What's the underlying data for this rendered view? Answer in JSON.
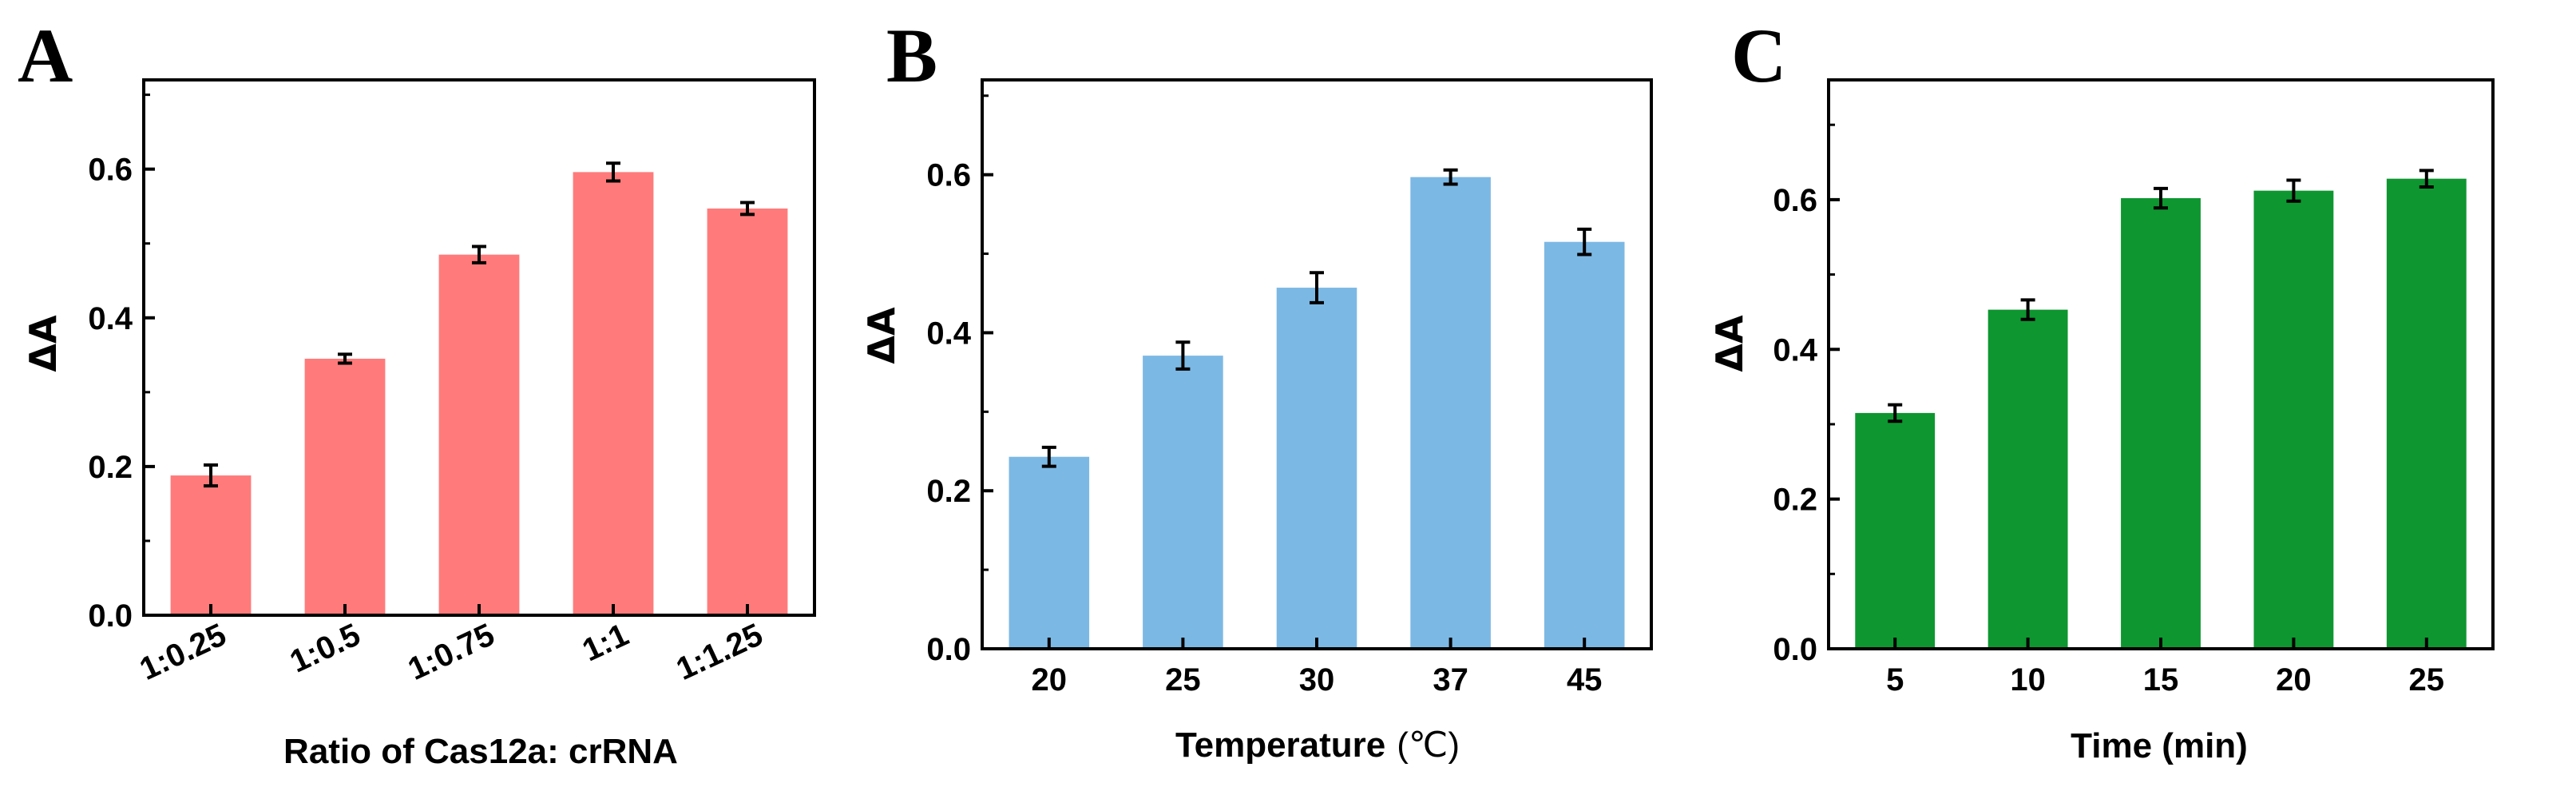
{
  "figure": {
    "panels": [
      "A",
      "B",
      "C"
    ]
  },
  "chart_data": [
    {
      "type": "bar",
      "panel": "A",
      "xlabel": "Ratio of Cas12a: crRNA",
      "ylabel": "ΔA",
      "categories": [
        "1:0.25",
        "1:0.5",
        "1:0.75",
        "1:1",
        "1:1.25"
      ],
      "values": [
        0.188,
        0.345,
        0.485,
        0.596,
        0.547
      ],
      "errors": [
        0.014,
        0.006,
        0.011,
        0.012,
        0.008
      ],
      "ylim": [
        0,
        0.72
      ],
      "yticks": [
        "0.0",
        "0.2",
        "0.4",
        "0.6"
      ],
      "ytick_values": [
        0,
        0.2,
        0.4,
        0.6
      ],
      "color": "#ff7b7b",
      "rotate_xticks": true
    },
    {
      "type": "bar",
      "panel": "B",
      "xlabel": "Temperature",
      "xlabel_unit": "(℃)",
      "ylabel": "ΔA",
      "categories": [
        "20",
        "25",
        "30",
        "37",
        "45"
      ],
      "values": [
        0.243,
        0.371,
        0.457,
        0.597,
        0.515
      ],
      "errors": [
        0.012,
        0.017,
        0.019,
        0.009,
        0.016
      ],
      "ylim": [
        0,
        0.72
      ],
      "yticks": [
        "0.0",
        "0.2",
        "0.4",
        "0.6"
      ],
      "ytick_values": [
        0,
        0.2,
        0.4,
        0.6
      ],
      "color": "#7cb8e4",
      "rotate_xticks": false
    },
    {
      "type": "bar",
      "panel": "C",
      "xlabel": "Time (min)",
      "ylabel": "ΔA",
      "categories": [
        "5",
        "10",
        "15",
        "20",
        "25"
      ],
      "values": [
        0.315,
        0.453,
        0.602,
        0.612,
        0.628
      ],
      "errors": [
        0.011,
        0.013,
        0.013,
        0.014,
        0.011
      ],
      "ylim": [
        0,
        0.76
      ],
      "yticks": [
        "0.0",
        "0.2",
        "0.4",
        "0.6"
      ],
      "ytick_values": [
        0,
        0.2,
        0.4,
        0.6
      ],
      "color": "#0e9630",
      "rotate_xticks": false
    }
  ]
}
